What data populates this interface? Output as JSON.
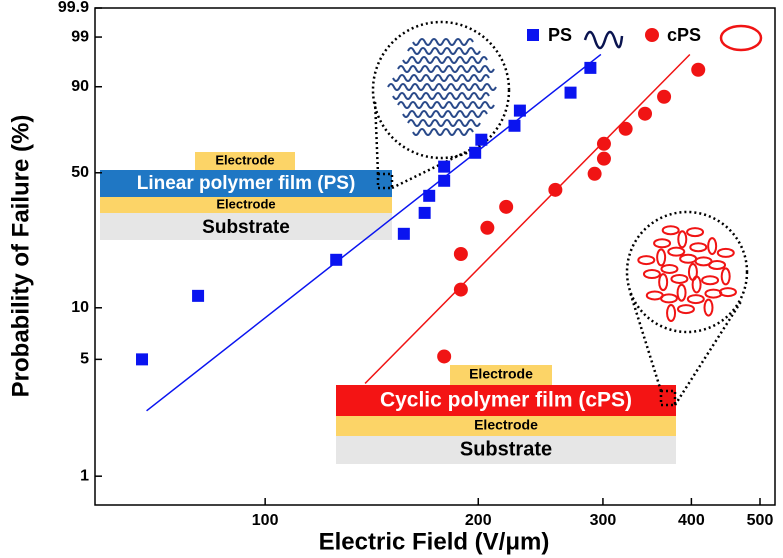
{
  "chart_data": {
    "type": "weibull-scatter",
    "x_label": "Electric Field (V/μm)",
    "y_label": "Probability of Failure (%)",
    "xscale": "log",
    "yscale": "weibull",
    "xlim": [
      57.5,
      525
    ],
    "xticks": [
      100,
      200,
      300,
      400,
      500
    ],
    "ylim": [
      0.67,
      99.9
    ],
    "yticks": [
      1,
      5,
      10,
      50,
      90,
      99,
      99.9
    ],
    "series": [
      {
        "name": "PS",
        "color": "#0a14f0",
        "marker": "square",
        "x": [
          67,
          80.4,
          126,
          157,
          168,
          170.5,
          179,
          179,
          198,
          202,
          225,
          229,
          270,
          288
        ],
        "values": [
          5,
          11.7,
          18.6,
          25.6,
          32.7,
          39.5,
          46.2,
          53,
          60,
          66.7,
          73.7,
          80.8,
          88,
          95
        ]
      },
      {
        "name": "cPS",
        "color": "#f01414",
        "marker": "circle",
        "x": [
          179,
          189,
          189,
          206,
          219,
          257,
          292,
          301,
          301,
          323,
          344,
          366,
          409
        ],
        "values": [
          5.2,
          12.7,
          20,
          27.5,
          35,
          42.1,
          49.5,
          57,
          64.6,
          72.2,
          79.4,
          86.5,
          94.6
        ]
      }
    ],
    "fit_lines": [
      {
        "color": "#0a14f0",
        "x": [
          68,
          298
        ],
        "values": [
          2.47,
          97.3
        ]
      },
      {
        "color": "#f01414",
        "x": [
          138.4,
          398
        ],
        "values": [
          3.6,
          97.3
        ]
      }
    ],
    "annotations": {
      "ps_stack": [
        "Electrode",
        "Linear polymer film (PS)",
        "Electrode",
        "Substrate"
      ],
      "cps_stack": [
        "Electrode",
        "Cyclic polymer film (cPS)",
        "Electrode",
        "Substrate"
      ]
    }
  }
}
